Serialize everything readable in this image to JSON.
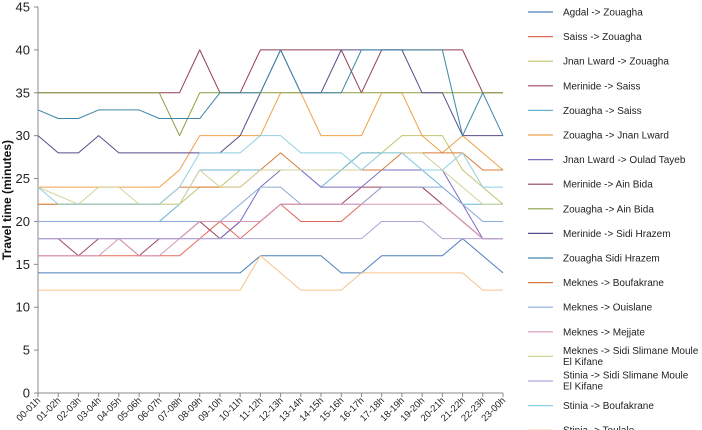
{
  "chart_data": {
    "type": "line",
    "ylabel": "Travel time (minutes)",
    "xlabel": "",
    "ylim": [
      0,
      45
    ],
    "yticks": [
      0,
      5,
      10,
      15,
      20,
      25,
      30,
      35,
      40,
      45
    ],
    "grid": false,
    "legend": "right",
    "categories": [
      "00-01h",
      "01-02h",
      "02-03h",
      "03-04h",
      "04-05h",
      "05-06h",
      "06-07h",
      "07-08h",
      "08-09h",
      "09-10h",
      "10-11h",
      "11-12h",
      "12-13h",
      "13-14h",
      "14-15h",
      "15-16h",
      "16-17h",
      "17-18h",
      "18-19h",
      "19-20h",
      "20-21h",
      "21-22h",
      "22-23h",
      "23-00h"
    ],
    "series": [
      {
        "name": "Agdal -> Zouagha",
        "color": "#4a7ebb",
        "values": [
          14,
          14,
          14,
          14,
          14,
          14,
          14,
          14,
          14,
          14,
          14,
          16,
          16,
          16,
          16,
          14,
          14,
          16,
          16,
          16,
          16,
          18,
          16,
          14
        ]
      },
      {
        "name": "Saiss -> Zouagha",
        "color": "#e26b5b",
        "values": [
          16,
          16,
          16,
          16,
          16,
          16,
          16,
          16,
          18,
          20,
          18,
          20,
          22,
          20,
          20,
          20,
          22,
          24,
          24,
          24,
          22,
          20,
          18,
          18
        ]
      },
      {
        "name": "Jnan Lward -> Zouagha",
        "color": "#c4c46a",
        "values": [
          22,
          22,
          22,
          22,
          22,
          22,
          22,
          22,
          24,
          24,
          26,
          26,
          26,
          26,
          26,
          26,
          28,
          28,
          30,
          30,
          30,
          26,
          24,
          22
        ]
      },
      {
        "name": "Merinide -> Saiss",
        "color": "#a04664",
        "values": [
          18,
          18,
          16,
          18,
          18,
          16,
          18,
          18,
          20,
          18,
          20,
          20,
          22,
          22,
          22,
          22,
          24,
          24,
          24,
          24,
          22,
          20,
          18,
          18
        ]
      },
      {
        "name": "Zouagha -> Saiss",
        "color": "#6bb5d8",
        "values": [
          20,
          20,
          20,
          20,
          20,
          20,
          20,
          22,
          26,
          26,
          26,
          26,
          26,
          26,
          24,
          26,
          28,
          28,
          28,
          26,
          24,
          22,
          22,
          22
        ]
      },
      {
        "name": "Zouagha -> Jnan Lward",
        "color": "#f0a04b",
        "values": [
          24,
          24,
          24,
          24,
          24,
          24,
          24,
          26,
          30,
          30,
          30,
          30,
          35,
          35,
          30,
          30,
          30,
          35,
          35,
          30,
          28,
          30,
          28,
          26
        ]
      },
      {
        "name": "Jnan Lward -> Oulad Tayeb",
        "color": "#7b6fc4",
        "values": [
          18,
          18,
          18,
          18,
          18,
          18,
          18,
          18,
          18,
          18,
          20,
          24,
          26,
          26,
          24,
          24,
          24,
          26,
          26,
          26,
          26,
          22,
          18,
          18
        ]
      },
      {
        "name": "Merinide -> Ain Bida",
        "color": "#8f3f55",
        "values": [
          35,
          35,
          35,
          35,
          35,
          35,
          35,
          35,
          40,
          35,
          35,
          40,
          40,
          40,
          40,
          40,
          35,
          40,
          40,
          40,
          40,
          40,
          35,
          35
        ]
      },
      {
        "name": "Zouagha -> Ain Bida",
        "color": "#8aa043",
        "values": [
          35,
          35,
          35,
          35,
          35,
          35,
          35,
          30,
          35,
          35,
          35,
          35,
          35,
          35,
          35,
          35,
          35,
          35,
          35,
          35,
          35,
          35,
          35,
          35
        ]
      },
      {
        "name": "Merinide -> Sidi Hrazem",
        "color": "#5b4a8a",
        "values": [
          30,
          28,
          28,
          30,
          28,
          28,
          28,
          28,
          28,
          28,
          30,
          35,
          40,
          35,
          35,
          40,
          40,
          40,
          40,
          35,
          35,
          30,
          30,
          30
        ]
      },
      {
        "name": "Zouagha Sidi Hrazem",
        "color": "#3d86a8",
        "values": [
          33,
          32,
          32,
          33,
          33,
          33,
          32,
          32,
          32,
          35,
          35,
          35,
          40,
          35,
          35,
          35,
          40,
          40,
          40,
          40,
          40,
          30,
          35,
          30
        ]
      },
      {
        "name": "Meknes -> Boufakrane",
        "color": "#d97c3a",
        "values": [
          22,
          22,
          22,
          22,
          22,
          22,
          22,
          24,
          24,
          24,
          24,
          26,
          28,
          26,
          26,
          26,
          26,
          26,
          28,
          28,
          28,
          28,
          26,
          26
        ]
      },
      {
        "name": "Meknes -> Ouislane",
        "color": "#8faadc",
        "values": [
          20,
          20,
          20,
          20,
          20,
          20,
          20,
          20,
          20,
          20,
          22,
          24,
          24,
          22,
          22,
          22,
          22,
          24,
          24,
          24,
          24,
          22,
          20,
          20
        ]
      },
      {
        "name": "Meknes -> Mejjate",
        "color": "#d998b8",
        "values": [
          16,
          16,
          16,
          16,
          18,
          16,
          16,
          18,
          20,
          20,
          20,
          20,
          22,
          22,
          22,
          22,
          22,
          22,
          22,
          22,
          22,
          20,
          18,
          18
        ]
      },
      {
        "name": "Meknes -> Sidi Slimane Moule El Kifane",
        "color": "#d2d39a",
        "values": [
          24,
          23,
          22,
          24,
          24,
          22,
          22,
          22,
          26,
          24,
          24,
          26,
          26,
          26,
          26,
          26,
          26,
          28,
          28,
          28,
          26,
          24,
          22,
          22
        ]
      },
      {
        "name": "Stinia -> Sidi Slimane Moule El Kifane",
        "color": "#b3a6d9",
        "values": [
          18,
          18,
          18,
          18,
          18,
          18,
          18,
          18,
          18,
          18,
          18,
          18,
          18,
          18,
          18,
          18,
          18,
          20,
          20,
          20,
          18,
          18,
          18,
          18
        ]
      },
      {
        "name": "Stinia -> Boufakrane",
        "color": "#8fd0e3",
        "values": [
          24,
          22,
          22,
          22,
          22,
          22,
          22,
          24,
          28,
          28,
          28,
          30,
          30,
          28,
          28,
          28,
          26,
          28,
          28,
          26,
          26,
          28,
          24,
          24
        ]
      },
      {
        "name": "Stinia -> Toulale",
        "color": "#f6c38a",
        "values": [
          12,
          12,
          12,
          12,
          12,
          12,
          12,
          12,
          12,
          12,
          12,
          16,
          14,
          12,
          12,
          12,
          14,
          14,
          14,
          14,
          14,
          14,
          12,
          12
        ]
      }
    ]
  }
}
